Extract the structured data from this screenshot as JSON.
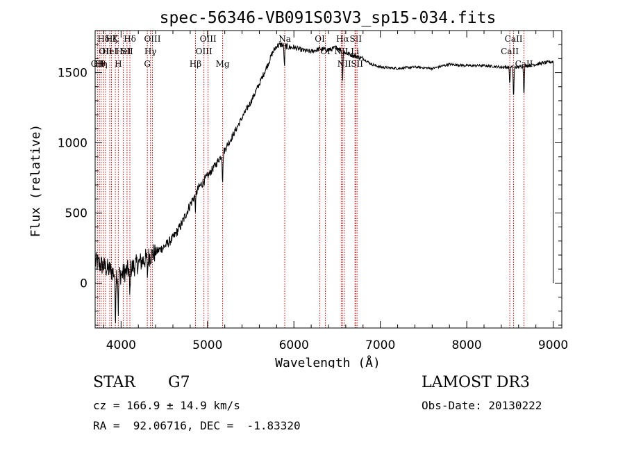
{
  "chart_data": {
    "type": "line",
    "title": "spec-56346-VB091S03V3_sp15-034.fits",
    "xlabel": "Wavelength (Å)",
    "ylabel": "Flux (relative)",
    "xlim": [
      3700,
      9100
    ],
    "ylim": [
      -320,
      1800
    ],
    "xticks": [
      4000,
      5000,
      6000,
      7000,
      8000,
      9000
    ],
    "xtick_labels": [
      "4000",
      "5000",
      "6000",
      "7000",
      "8000",
      "9000"
    ],
    "yticks": [
      0,
      500,
      1000,
      1500
    ],
    "ytick_labels": [
      "0",
      "500",
      "1000",
      "1500"
    ],
    "spectrum_anchors": {
      "x": [
        3700,
        3800,
        3900,
        4000,
        4100,
        4200,
        4300,
        4400,
        4500,
        4600,
        4700,
        4800,
        4900,
        5000,
        5100,
        5200,
        5300,
        5400,
        5500,
        5600,
        5700,
        5750,
        5800,
        5850,
        5900,
        5950,
        6000,
        6100,
        6200,
        6300,
        6400,
        6500,
        6600,
        6700,
        6800,
        6900,
        7000,
        7200,
        7400,
        7600,
        7800,
        8000,
        8200,
        8400,
        8500,
        8600,
        8700,
        8800,
        8900,
        9000
      ],
      "y": [
        150,
        120,
        80,
        60,
        100,
        140,
        180,
        220,
        260,
        320,
        420,
        560,
        680,
        760,
        850,
        950,
        1060,
        1180,
        1290,
        1420,
        1560,
        1640,
        1690,
        1700,
        1690,
        1680,
        1680,
        1660,
        1650,
        1670,
        1660,
        1680,
        1640,
        1620,
        1600,
        1560,
        1540,
        1530,
        1540,
        1530,
        1560,
        1550,
        1550,
        1540,
        1540,
        1540,
        1550,
        1560,
        1570,
        1580
      ]
    },
    "absorption_dips": [
      {
        "x": 3934,
        "depth": 320
      },
      {
        "x": 3968,
        "depth": 260
      },
      {
        "x": 4101,
        "depth": 200
      },
      {
        "x": 4305,
        "depth": 120
      },
      {
        "x": 4861,
        "depth": 100
      },
      {
        "x": 5175,
        "depth": 200
      },
      {
        "x": 5890,
        "depth": 150
      },
      {
        "x": 6563,
        "depth": 200
      },
      {
        "x": 8498,
        "depth": 120
      },
      {
        "x": 8542,
        "depth": 220
      },
      {
        "x": 8662,
        "depth": 200
      }
    ],
    "line_markers": [
      {
        "x": 3727,
        "label": "OII",
        "row": 2
      },
      {
        "x": 3750,
        "label": "Hθ",
        "row": 2
      },
      {
        "x": 3770,
        "label": "Hη",
        "row": 2
      },
      {
        "x": 3798,
        "label": "Hδ",
        "row": 0
      },
      {
        "x": 3820,
        "label": "OII",
        "row": 1
      },
      {
        "x": 3869,
        "label": "HeI",
        "row": 1
      },
      {
        "x": 3889,
        "label": "Hζ",
        "row": 0
      },
      {
        "x": 3934,
        "label": "K",
        "row": 0
      },
      {
        "x": 3968,
        "label": "H",
        "row": 2
      },
      {
        "x": 4026,
        "label": "HeI",
        "row": 1
      },
      {
        "x": 4069,
        "label": "SII",
        "row": 1
      },
      {
        "x": 4102,
        "label": "Hδ",
        "row": 0
      },
      {
        "x": 4304,
        "label": "G",
        "row": 2
      },
      {
        "x": 4340,
        "label": "Hγ",
        "row": 1
      },
      {
        "x": 4363,
        "label": "OIII",
        "row": 0
      },
      {
        "x": 4861,
        "label": "Hβ",
        "row": 2
      },
      {
        "x": 4959,
        "label": "OIII",
        "row": 1
      },
      {
        "x": 5007,
        "label": "OIII",
        "row": 0
      },
      {
        "x": 5175,
        "label": "Mg",
        "row": 2
      },
      {
        "x": 5894,
        "label": "Na",
        "row": 0
      },
      {
        "x": 6300,
        "label": "OI",
        "row": 0
      },
      {
        "x": 6364,
        "label": "OI",
        "row": 1
      },
      {
        "x": 6548,
        "label": "NII",
        "row": 1
      },
      {
        "x": 6563,
        "label": "Hα",
        "row": 0
      },
      {
        "x": 6583,
        "label": "NII",
        "row": 2
      },
      {
        "x": 6707,
        "label": "Li",
        "row": 1
      },
      {
        "x": 6716,
        "label": "SII",
        "row": 0
      },
      {
        "x": 6731,
        "label": "SII",
        "row": 2
      },
      {
        "x": 8498,
        "label": "CaII",
        "row": 1
      },
      {
        "x": 8542,
        "label": "CaII",
        "row": 0
      },
      {
        "x": 8662,
        "label": "CaII",
        "row": 2
      }
    ]
  },
  "info": {
    "object_class": "STAR",
    "subclass": "G7",
    "survey": "LAMOST DR3",
    "redshift_line": "cz = 166.9 ± 14.9 km/s",
    "obs_date_line": "Obs-Date: 20130222",
    "coords_line": "RA =  92.06716, DEC =  -1.83320"
  },
  "colors": {
    "spectrum": "#000000",
    "markers": "#cc0000",
    "axes": "#000000",
    "background": "#ffffff"
  }
}
